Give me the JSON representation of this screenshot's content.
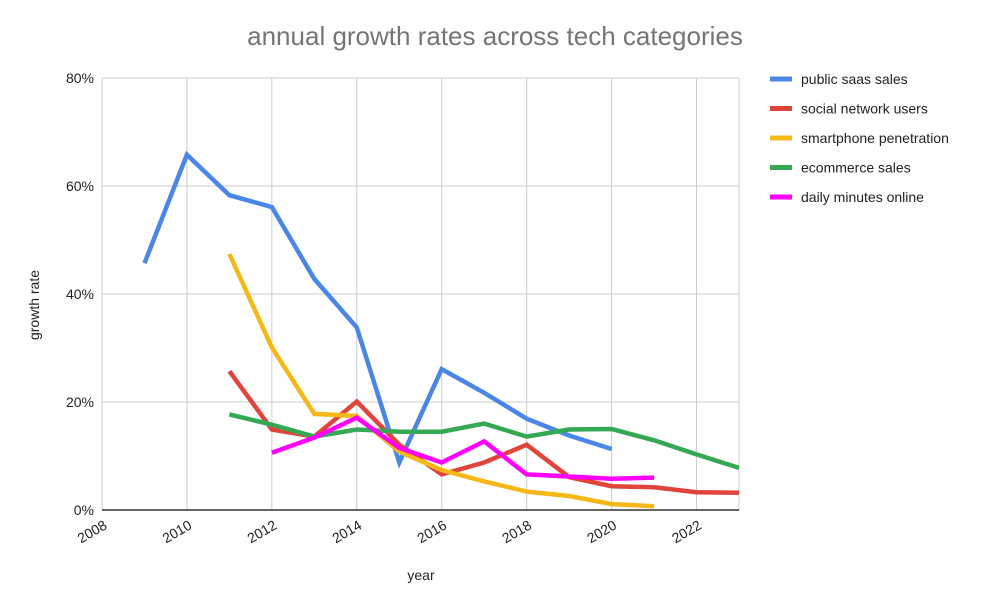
{
  "chart_data": {
    "type": "line",
    "title": "annual growth rates across tech categories",
    "xlabel": "year",
    "ylabel": "growth rate",
    "xlim": [
      2008,
      2023
    ],
    "ylim": [
      0,
      80
    ],
    "x_ticks": [
      "2008",
      "2010",
      "2012",
      "2014",
      "2016",
      "2018",
      "2020",
      "2022"
    ],
    "x_tick_values": [
      2008,
      2010,
      2012,
      2014,
      2016,
      2018,
      2020,
      2022
    ],
    "y_ticks": [
      "0%",
      "20%",
      "40%",
      "60%",
      "80%"
    ],
    "y_tick_values": [
      0,
      20,
      40,
      60,
      80
    ],
    "grid": true,
    "legend_position": "right",
    "series": [
      {
        "name": "public saas sales",
        "color": "#4a86e8",
        "x": [
          2009,
          2010,
          2011,
          2012,
          2013,
          2014,
          2015,
          2016,
          2017,
          2018,
          2019,
          2020
        ],
        "values": [
          45.7,
          65.8,
          58.3,
          56.1,
          42.8,
          33.8,
          8.8,
          26.1,
          21.7,
          16.9,
          13.8,
          11.3
        ]
      },
      {
        "name": "social network users",
        "color": "#e0443a",
        "x": [
          2011,
          2012,
          2013,
          2014,
          2015,
          2016,
          2017,
          2018,
          2019,
          2020,
          2021,
          2022,
          2023
        ],
        "values": [
          25.7,
          14.9,
          13.6,
          20.1,
          12.1,
          6.6,
          8.8,
          12.1,
          6.1,
          4.4,
          4.2,
          3.3,
          3.2
        ]
      },
      {
        "name": "smartphone penetration",
        "color": "#f6b817",
        "x": [
          2011,
          2012,
          2013,
          2014,
          2015,
          2016,
          2017,
          2018,
          2019,
          2020,
          2021
        ],
        "values": [
          47.4,
          30.1,
          17.8,
          17.4,
          10.8,
          7.4,
          5.3,
          3.4,
          2.6,
          1.1,
          0.7
        ]
      },
      {
        "name": "ecommerce sales",
        "color": "#34a853",
        "x": [
          2011,
          2012,
          2013,
          2014,
          2015,
          2016,
          2017,
          2018,
          2019,
          2020,
          2021,
          2022,
          2023
        ],
        "values": [
          17.7,
          15.8,
          13.6,
          14.9,
          14.5,
          14.5,
          16.0,
          13.6,
          14.9,
          15.0,
          12.9,
          10.3,
          7.8
        ]
      },
      {
        "name": "daily minutes online",
        "color": "#ff00ff",
        "x": [
          2012,
          2013,
          2014,
          2015,
          2016,
          2017,
          2018,
          2019,
          2020,
          2021
        ],
        "values": [
          10.6,
          13.4,
          17.1,
          11.5,
          8.8,
          12.7,
          6.6,
          6.2,
          5.8,
          6.0
        ]
      }
    ]
  }
}
